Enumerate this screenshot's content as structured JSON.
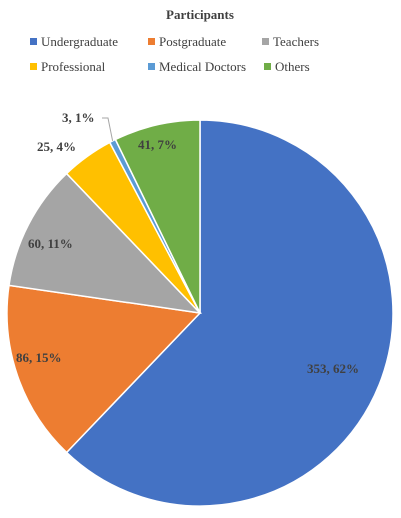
{
  "chart_data": {
    "type": "pie",
    "title": "Participants",
    "categories": [
      "Undergraduate",
      "Postgraduate",
      "Teachers",
      "Professional",
      "Medical Doctors",
      "Others"
    ],
    "values": [
      353,
      86,
      60,
      25,
      3,
      41
    ],
    "percentages": [
      "62%",
      "15%",
      "11%",
      "4%",
      "1%",
      "7%"
    ],
    "data_labels": [
      "353, 62%",
      "86, 15%",
      "60, 11%",
      "25, 4%",
      "3, 1%",
      "41, 7%"
    ],
    "colors": [
      "#4472c4",
      "#ed7d31",
      "#a5a5a5",
      "#ffc000",
      "#5b9bd5",
      "#70ad47"
    ],
    "start_angle_deg": 0,
    "direction": "clockwise",
    "legend_placement": "top"
  }
}
